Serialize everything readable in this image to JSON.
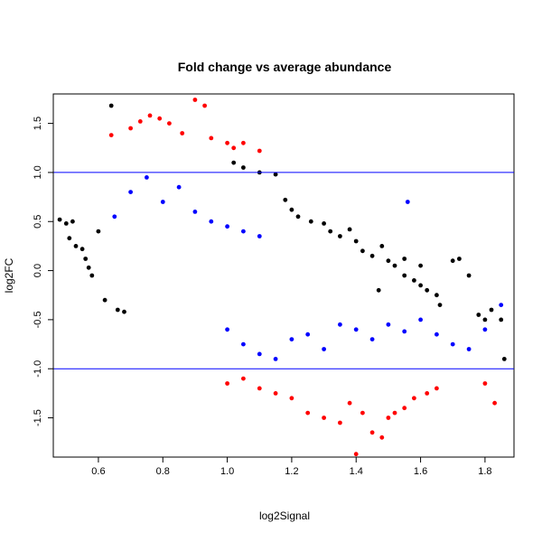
{
  "chart_data": {
    "type": "scatter",
    "title": "Fold change vs average abundance",
    "xlabel": "log2Signal",
    "ylabel": "log2FC",
    "xlim": [
      0.46,
      1.89
    ],
    "ylim": [
      -1.9,
      1.8
    ],
    "x_ticks": [
      "0.6",
      "0.8",
      "1.0",
      "1.2",
      "1.4",
      "1.6",
      "1.8"
    ],
    "y_ticks": [
      "-1.5",
      "-1.0",
      "-0.5",
      "0.0",
      "0.5",
      "1.0",
      "1.5"
    ],
    "reference_lines_y": [
      1.0,
      -1.0
    ],
    "reference_line_color": "#0000ff",
    "grid": false,
    "legend": "none",
    "series": [
      {
        "color": "#000000",
        "description_values": "abs(log2FC) < ~0.3 core band plus sparse points at high log2Signal",
        "points": [
          [
            0.48,
            0.52
          ],
          [
            0.5,
            0.48
          ],
          [
            0.52,
            0.5
          ],
          [
            0.51,
            0.33
          ],
          [
            0.53,
            0.25
          ],
          [
            0.55,
            0.22
          ],
          [
            0.57,
            0.03
          ],
          [
            0.58,
            -0.05
          ],
          [
            0.56,
            0.12
          ],
          [
            0.6,
            0.4
          ],
          [
            0.62,
            -0.3
          ],
          [
            0.64,
            1.68
          ],
          [
            0.66,
            -0.4
          ],
          [
            0.68,
            -0.42
          ],
          [
            1.02,
            1.1
          ],
          [
            1.05,
            1.05
          ],
          [
            1.1,
            1.0
          ],
          [
            1.15,
            0.98
          ],
          [
            1.18,
            0.72
          ],
          [
            1.2,
            0.62
          ],
          [
            1.22,
            0.55
          ],
          [
            1.26,
            0.5
          ],
          [
            1.3,
            0.48
          ],
          [
            1.32,
            0.4
          ],
          [
            1.35,
            0.35
          ],
          [
            1.38,
            0.42
          ],
          [
            1.4,
            0.3
          ],
          [
            1.42,
            0.2
          ],
          [
            1.45,
            0.15
          ],
          [
            1.48,
            0.25
          ],
          [
            1.5,
            0.1
          ],
          [
            1.52,
            0.05
          ],
          [
            1.55,
            0.12
          ],
          [
            1.58,
            -0.1
          ],
          [
            1.6,
            -0.15
          ],
          [
            1.62,
            -0.2
          ],
          [
            1.65,
            -0.25
          ],
          [
            1.66,
            -0.35
          ],
          [
            1.7,
            0.1
          ],
          [
            1.72,
            0.12
          ],
          [
            1.75,
            -0.05
          ],
          [
            1.78,
            -0.45
          ],
          [
            1.8,
            -0.5
          ],
          [
            1.82,
            -0.4
          ],
          [
            1.85,
            -0.5
          ],
          [
            1.86,
            -0.9
          ],
          [
            1.6,
            0.05
          ],
          [
            1.55,
            -0.05
          ],
          [
            1.47,
            -0.2
          ]
        ]
      },
      {
        "color": "#0000ff",
        "description_values": "points with ~0.3 < abs(log2FC) < 1.0; upper cloud centered near x 0.8, lower cloud near x 1.2",
        "points": [
          [
            0.65,
            0.55
          ],
          [
            0.7,
            0.8
          ],
          [
            0.75,
            0.95
          ],
          [
            0.8,
            0.7
          ],
          [
            0.85,
            0.85
          ],
          [
            0.9,
            0.6
          ],
          [
            0.95,
            0.5
          ],
          [
            1.0,
            0.45
          ],
          [
            1.05,
            0.4
          ],
          [
            1.1,
            0.35
          ],
          [
            1.0,
            -0.6
          ],
          [
            1.05,
            -0.75
          ],
          [
            1.1,
            -0.85
          ],
          [
            1.15,
            -0.9
          ],
          [
            1.2,
            -0.7
          ],
          [
            1.25,
            -0.65
          ],
          [
            1.3,
            -0.8
          ],
          [
            1.35,
            -0.55
          ],
          [
            1.4,
            -0.6
          ],
          [
            1.45,
            -0.7
          ],
          [
            1.5,
            -0.55
          ],
          [
            1.55,
            -0.62
          ],
          [
            1.6,
            -0.5
          ],
          [
            1.65,
            -0.65
          ],
          [
            1.7,
            -0.75
          ],
          [
            1.75,
            -0.8
          ],
          [
            1.8,
            -0.6
          ],
          [
            1.85,
            -0.35
          ],
          [
            1.56,
            0.7
          ]
        ]
      },
      {
        "color": "#ff0000",
        "description_values": "points with abs(log2FC) > ~1.1",
        "points": [
          [
            0.64,
            1.38
          ],
          [
            0.7,
            1.45
          ],
          [
            0.73,
            1.52
          ],
          [
            0.76,
            1.58
          ],
          [
            0.79,
            1.55
          ],
          [
            0.82,
            1.5
          ],
          [
            0.86,
            1.4
          ],
          [
            0.9,
            1.74
          ],
          [
            0.93,
            1.68
          ],
          [
            0.95,
            1.35
          ],
          [
            1.0,
            1.3
          ],
          [
            1.02,
            1.25
          ],
          [
            1.05,
            1.3
          ],
          [
            1.1,
            1.22
          ],
          [
            1.0,
            -1.15
          ],
          [
            1.05,
            -1.1
          ],
          [
            1.1,
            -1.2
          ],
          [
            1.15,
            -1.25
          ],
          [
            1.2,
            -1.3
          ],
          [
            1.25,
            -1.45
          ],
          [
            1.3,
            -1.5
          ],
          [
            1.35,
            -1.55
          ],
          [
            1.38,
            -1.35
          ],
          [
            1.42,
            -1.45
          ],
          [
            1.45,
            -1.65
          ],
          [
            1.48,
            -1.7
          ],
          [
            1.5,
            -1.5
          ],
          [
            1.52,
            -1.45
          ],
          [
            1.55,
            -1.4
          ],
          [
            1.58,
            -1.3
          ],
          [
            1.62,
            -1.25
          ],
          [
            1.65,
            -1.2
          ],
          [
            1.8,
            -1.15
          ],
          [
            1.83,
            -1.35
          ],
          [
            1.4,
            -1.87
          ]
        ]
      }
    ]
  }
}
